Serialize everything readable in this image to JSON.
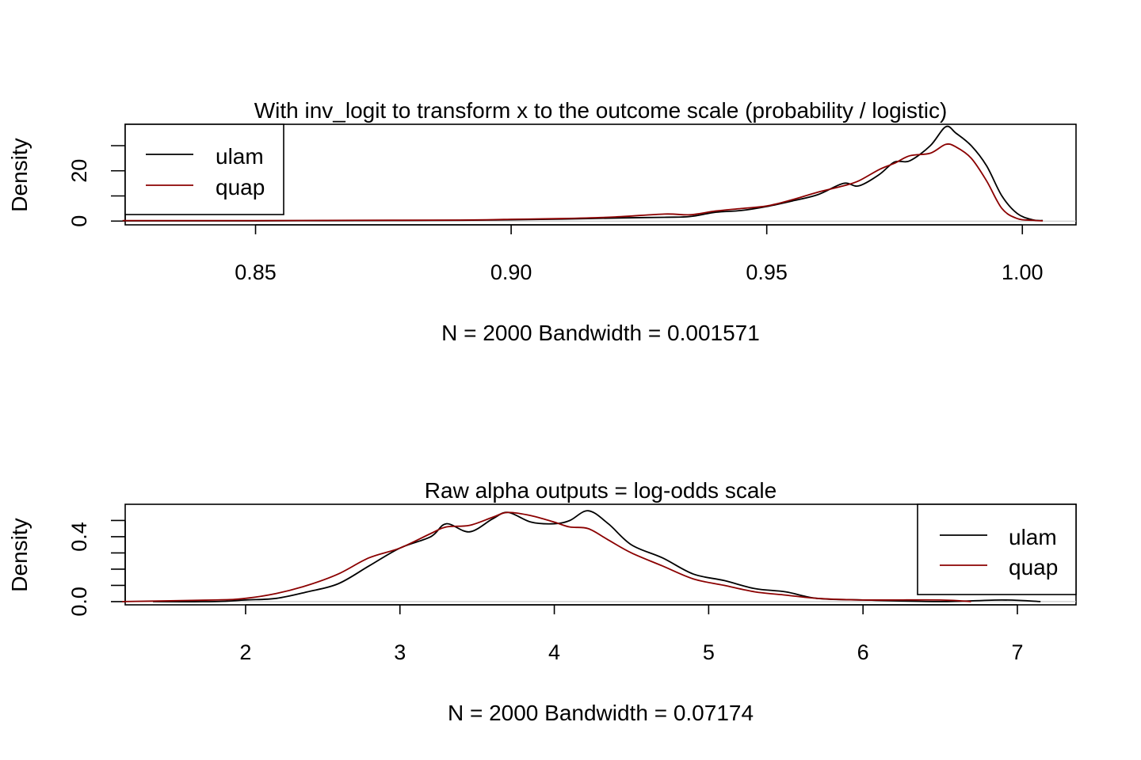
{
  "chart_data": [
    {
      "type": "line",
      "title": "With inv_logit to transform x to the outcome scale (probability / logistic)",
      "xlabel": "N = 2000   Bandwidth = 0.001571",
      "ylabel": "Density",
      "xlim": [
        0.8245,
        1.0105
      ],
      "ylim": [
        -1.5,
        38.5
      ],
      "xticks": [
        0.85,
        0.9,
        0.95,
        1.0
      ],
      "xtick_labels": [
        "0.85",
        "0.90",
        "0.95",
        "1.00"
      ],
      "yticks": [
        0,
        10,
        20,
        30
      ],
      "ytick_labels": [
        "0",
        "20"
      ],
      "legend": {
        "position": "top-left",
        "entries": [
          "ulam",
          "quap"
        ]
      },
      "series": [
        {
          "name": "ulam",
          "color": "#000000",
          "x": [
            0.824,
            0.85,
            0.87,
            0.89,
            0.9,
            0.91,
            0.92,
            0.93,
            0.935,
            0.94,
            0.945,
            0.95,
            0.955,
            0.96,
            0.965,
            0.968,
            0.972,
            0.975,
            0.978,
            0.982,
            0.985,
            0.987,
            0.99,
            0.993,
            0.996,
            0.999,
            1.002,
            1.004
          ],
          "y": [
            0.1,
            0.1,
            0.2,
            0.3,
            0.5,
            0.8,
            1.2,
            1.5,
            1.8,
            3.5,
            4.2,
            5.8,
            8.0,
            10.5,
            15.0,
            14.0,
            18.5,
            23.5,
            24.0,
            30.0,
            37.5,
            35.0,
            30.0,
            22.0,
            10.0,
            3.0,
            0.5,
            0.2
          ]
        },
        {
          "name": "quap",
          "color": "#8b0000",
          "x": [
            0.824,
            0.85,
            0.87,
            0.89,
            0.9,
            0.91,
            0.92,
            0.93,
            0.935,
            0.94,
            0.945,
            0.95,
            0.955,
            0.96,
            0.965,
            0.968,
            0.972,
            0.975,
            0.978,
            0.982,
            0.985,
            0.987,
            0.99,
            0.993,
            0.996,
            0.999,
            1.002,
            1.004
          ],
          "y": [
            0.2,
            0.2,
            0.3,
            0.4,
            0.7,
            1.0,
            1.6,
            2.8,
            2.5,
            4.0,
            5.0,
            6.0,
            8.5,
            11.5,
            14.0,
            16.0,
            20.5,
            23.0,
            26.0,
            27.0,
            30.5,
            29.5,
            25.0,
            16.0,
            5.0,
            1.0,
            0.3,
            0.1
          ]
        }
      ]
    },
    {
      "type": "line",
      "title": "Raw alpha outputs = log-odds scale",
      "xlabel": "N = 2000   Bandwidth = 0.07174",
      "ylabel": "Density",
      "xlim": [
        1.22,
        7.38
      ],
      "ylim": [
        -0.02,
        0.6
      ],
      "xticks": [
        2,
        3,
        4,
        5,
        6,
        7
      ],
      "xtick_labels": [
        "2",
        "3",
        "4",
        "5",
        "6",
        "7"
      ],
      "yticks": [
        0.0,
        0.1,
        0.2,
        0.3,
        0.4,
        0.5
      ],
      "ytick_labels": [
        "0.0",
        "0.4"
      ],
      "legend": {
        "position": "top-right",
        "entries": [
          "ulam",
          "quap"
        ]
      },
      "series": [
        {
          "name": "ulam",
          "color": "#000000",
          "x": [
            1.4,
            1.8,
            2.0,
            2.2,
            2.4,
            2.6,
            2.8,
            3.0,
            3.2,
            3.3,
            3.45,
            3.6,
            3.7,
            3.85,
            4.0,
            4.1,
            4.22,
            4.35,
            4.5,
            4.7,
            4.9,
            5.1,
            5.3,
            5.5,
            5.7,
            6.0,
            6.5,
            6.9,
            7.15
          ],
          "y": [
            0.0,
            0.0,
            0.01,
            0.02,
            0.06,
            0.11,
            0.22,
            0.33,
            0.4,
            0.48,
            0.43,
            0.51,
            0.55,
            0.49,
            0.48,
            0.5,
            0.56,
            0.48,
            0.35,
            0.27,
            0.17,
            0.13,
            0.08,
            0.06,
            0.02,
            0.01,
            0.0,
            0.01,
            0.0
          ]
        },
        {
          "name": "quap",
          "color": "#8b0000",
          "x": [
            1.2,
            1.8,
            2.0,
            2.2,
            2.4,
            2.6,
            2.8,
            3.0,
            3.2,
            3.3,
            3.45,
            3.6,
            3.7,
            3.85,
            4.0,
            4.1,
            4.22,
            4.35,
            4.5,
            4.7,
            4.9,
            5.1,
            5.3,
            5.5,
            5.7,
            6.0,
            6.5,
            6.7
          ],
          "y": [
            0.0,
            0.01,
            0.02,
            0.05,
            0.1,
            0.17,
            0.27,
            0.33,
            0.42,
            0.46,
            0.47,
            0.52,
            0.55,
            0.53,
            0.49,
            0.46,
            0.45,
            0.38,
            0.3,
            0.22,
            0.14,
            0.1,
            0.06,
            0.04,
            0.02,
            0.01,
            0.01,
            0.0
          ]
        }
      ]
    }
  ]
}
